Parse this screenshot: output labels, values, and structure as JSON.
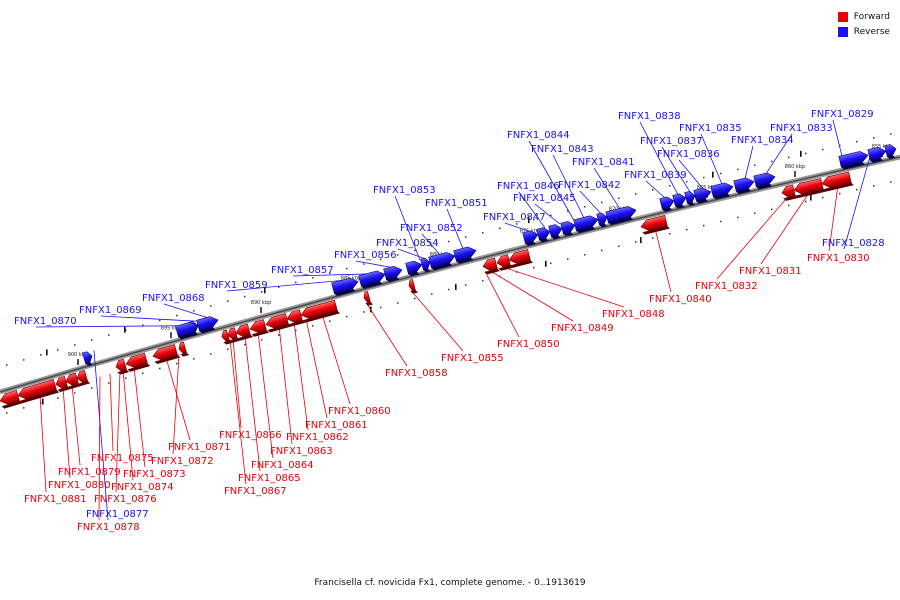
{
  "legend": [
    {
      "label": "Forward",
      "color": "#e8000b"
    },
    {
      "label": "Reverse",
      "color": "#1a12f0"
    }
  ],
  "caption": "Francisella cf. novicida Fx1, complete genome. - 0..1913619",
  "scale_ticks": [
    "855 kbp",
    "860 kbp",
    "865 kbp",
    "870 kbp",
    "875 kbp",
    "880 kbp",
    "885 kbp",
    "890 kbp",
    "895 kbp",
    "900 kbp"
  ],
  "genes": [
    {
      "name": "FNFX1_0829",
      "strand": "reverse"
    },
    {
      "name": "FNFX1_0828",
      "strand": "reverse"
    },
    {
      "name": "FNFX1_0833",
      "strand": "reverse"
    },
    {
      "name": "FNFX1_0835",
      "strand": "reverse"
    },
    {
      "name": "FNFX1_0834",
      "strand": "reverse"
    },
    {
      "name": "FNFX1_0838",
      "strand": "reverse"
    },
    {
      "name": "FNFX1_0837",
      "strand": "reverse"
    },
    {
      "name": "FNFX1_0836",
      "strand": "reverse"
    },
    {
      "name": "FNFX1_0839",
      "strand": "reverse"
    },
    {
      "name": "FNFX1_0844",
      "strand": "reverse"
    },
    {
      "name": "FNFX1_0843",
      "strand": "reverse"
    },
    {
      "name": "FNFX1_0841",
      "strand": "reverse"
    },
    {
      "name": "FNFX1_0846",
      "strand": "reverse"
    },
    {
      "name": "FNFX1_0842",
      "strand": "reverse"
    },
    {
      "name": "FNFX1_0845",
      "strand": "reverse"
    },
    {
      "name": "FNFX1_0847",
      "strand": "reverse"
    },
    {
      "name": "FNFX1_0853",
      "strand": "reverse"
    },
    {
      "name": "FNFX1_0851",
      "strand": "reverse"
    },
    {
      "name": "FNFX1_0852",
      "strand": "reverse"
    },
    {
      "name": "FNFX1_0854",
      "strand": "reverse"
    },
    {
      "name": "FNFX1_0856",
      "strand": "reverse"
    },
    {
      "name": "FNFX1_0857",
      "strand": "reverse"
    },
    {
      "name": "FNFX1_0859",
      "strand": "reverse"
    },
    {
      "name": "FNFX1_0868",
      "strand": "reverse"
    },
    {
      "name": "FNFX1_0869",
      "strand": "reverse"
    },
    {
      "name": "FNFX1_0870",
      "strand": "reverse"
    },
    {
      "name": "FNFX1_0877",
      "strand": "reverse"
    },
    {
      "name": "FNFX1_0830",
      "strand": "forward"
    },
    {
      "name": "FNFX1_0831",
      "strand": "forward"
    },
    {
      "name": "FNFX1_0832",
      "strand": "forward"
    },
    {
      "name": "FNFX1_0840",
      "strand": "forward"
    },
    {
      "name": "FNFX1_0848",
      "strand": "forward"
    },
    {
      "name": "FNFX1_0849",
      "strand": "forward"
    },
    {
      "name": "FNFX1_0850",
      "strand": "forward"
    },
    {
      "name": "FNFX1_0855",
      "strand": "forward"
    },
    {
      "name": "FNFX1_0858",
      "strand": "forward"
    },
    {
      "name": "FNFX1_0860",
      "strand": "forward"
    },
    {
      "name": "FNFX1_0861",
      "strand": "forward"
    },
    {
      "name": "FNFX1_0862",
      "strand": "forward"
    },
    {
      "name": "FNFX1_0863",
      "strand": "forward"
    },
    {
      "name": "FNFX1_0864",
      "strand": "forward"
    },
    {
      "name": "FNFX1_0865",
      "strand": "forward"
    },
    {
      "name": "FNFX1_0866",
      "strand": "forward"
    },
    {
      "name": "FNFX1_0867",
      "strand": "forward"
    },
    {
      "name": "FNFX1_0871",
      "strand": "forward"
    },
    {
      "name": "FNFX1_0872",
      "strand": "forward"
    },
    {
      "name": "FNFX1_0873",
      "strand": "forward"
    },
    {
      "name": "FNFX1_0874",
      "strand": "forward"
    },
    {
      "name": "FNFX1_0875",
      "strand": "forward"
    },
    {
      "name": "FNFX1_0876",
      "strand": "forward"
    },
    {
      "name": "FNFX1_0878",
      "strand": "forward"
    },
    {
      "name": "FNFX1_0879",
      "strand": "forward"
    },
    {
      "name": "FNFX1_0880",
      "strand": "forward"
    },
    {
      "name": "FNFX1_0881",
      "strand": "forward"
    }
  ]
}
